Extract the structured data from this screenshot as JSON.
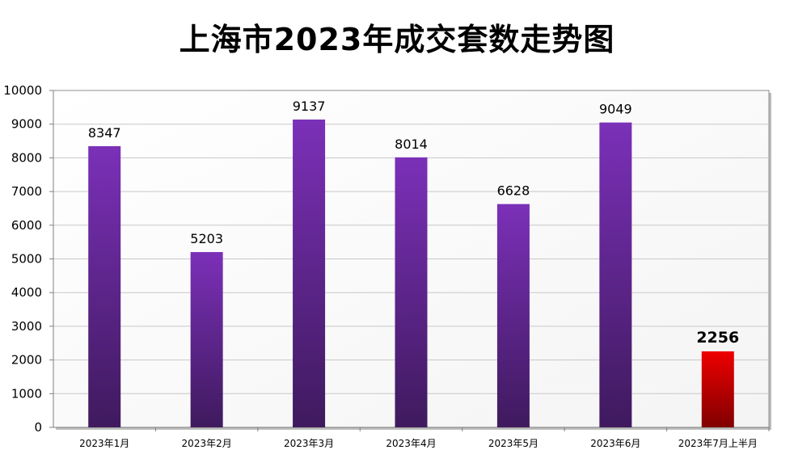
{
  "chart_data": {
    "type": "bar",
    "title": "上海市2023年成交套数走势图",
    "xlabel": "",
    "ylabel": "",
    "categories": [
      "2023年1月",
      "2023年2月",
      "2023年3月",
      "2023年4月",
      "2023年5月",
      "2023年6月",
      "2023年7月上半月"
    ],
    "values": [
      8347,
      5203,
      9137,
      8014,
      6628,
      9049,
      2256
    ],
    "highlight_index": 6,
    "ylim": [
      0,
      10000
    ],
    "yticks": [
      0,
      1000,
      2000,
      3000,
      4000,
      5000,
      6000,
      7000,
      8000,
      9000,
      10000
    ],
    "grid": true,
    "legend": "none",
    "colors": {
      "bar_top": "#7b30b8",
      "bar_bottom": "#3f1a5e",
      "highlight_top": "#ee0000",
      "highlight_bottom": "#800000",
      "highlight_label": "#c00000",
      "grid": "#c8c8c8"
    }
  }
}
